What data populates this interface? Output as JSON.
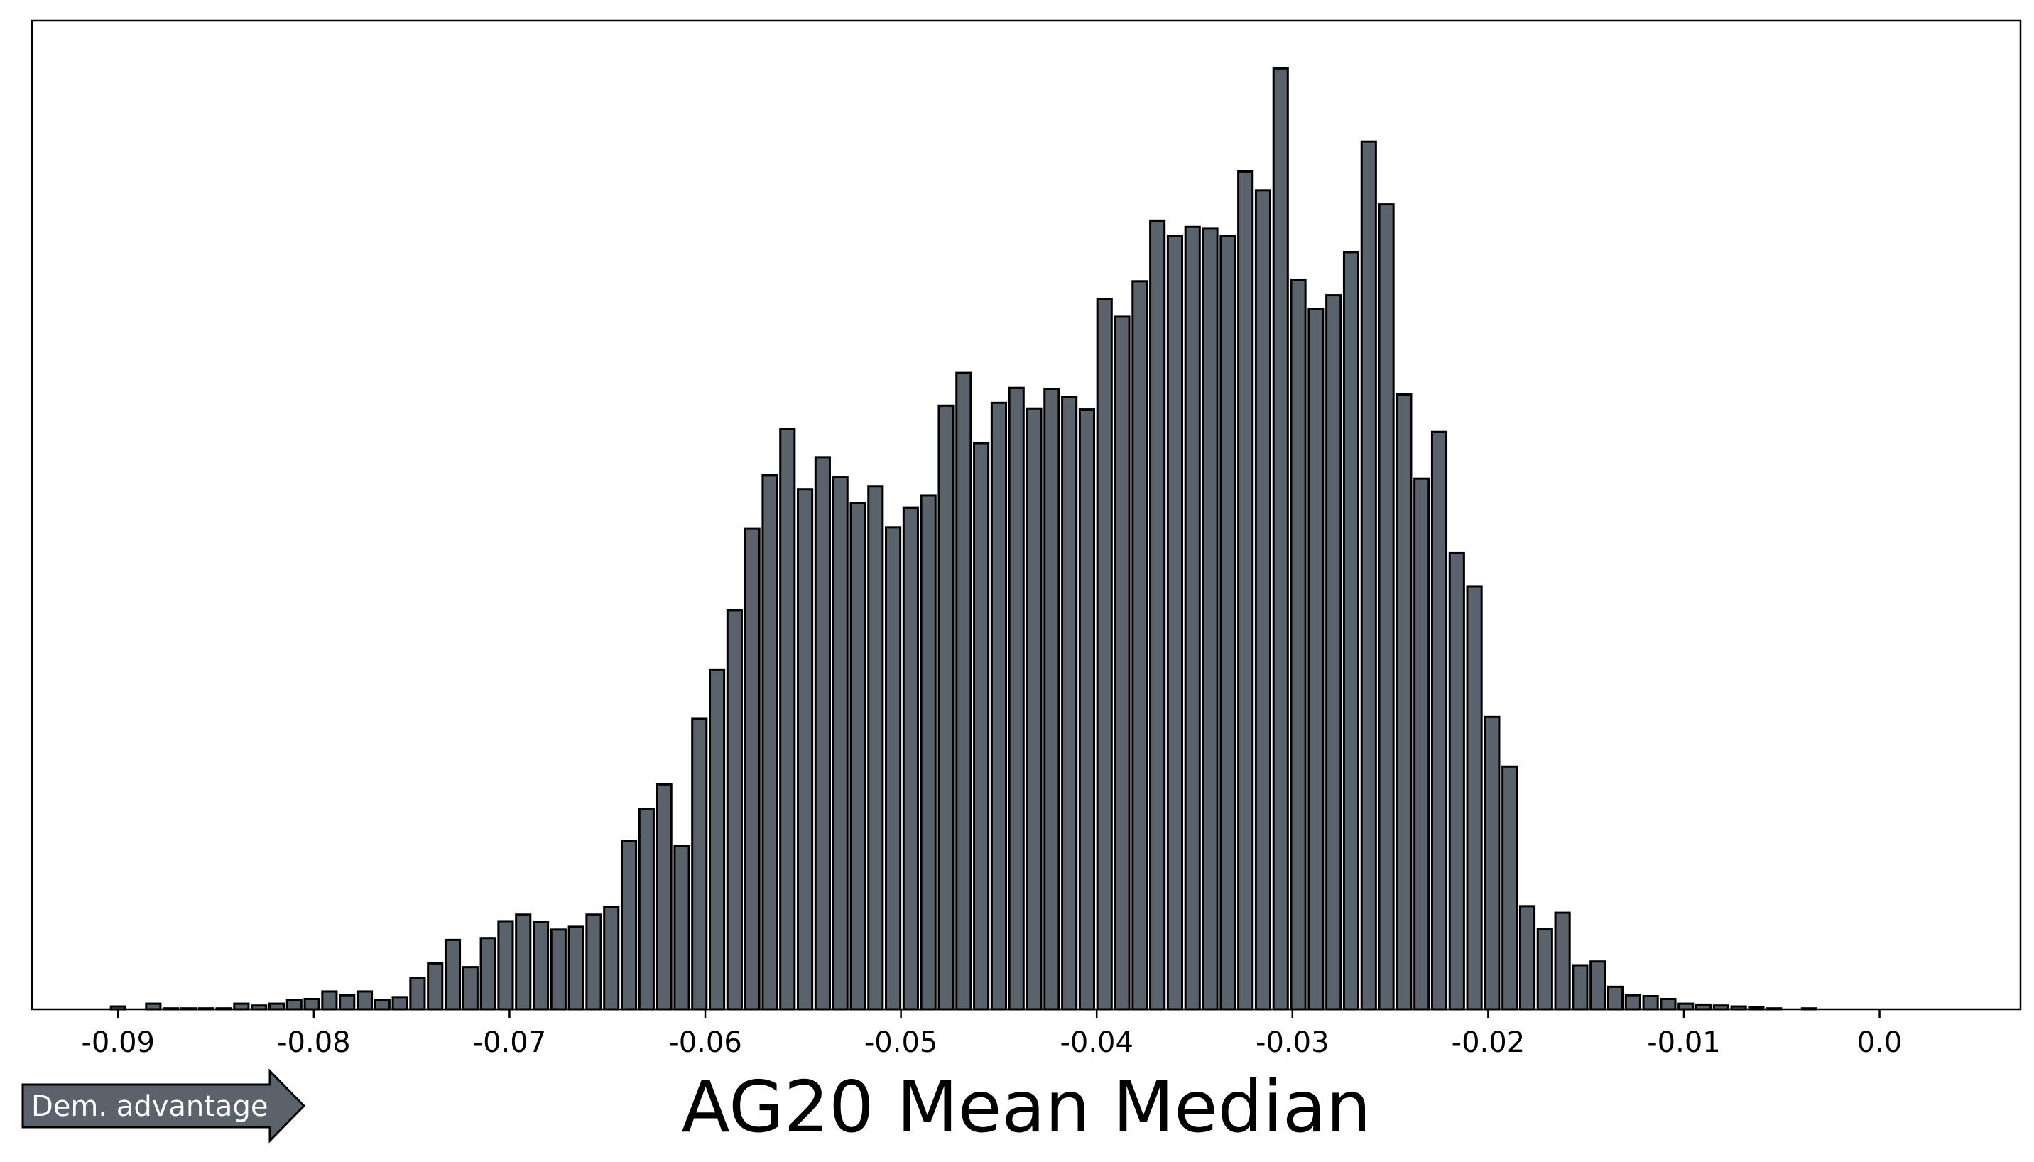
{
  "chart_data": {
    "type": "bar",
    "xlabel": "AG20 Mean Median",
    "ylabel": "",
    "xlim": [
      -0.0944,
      0.0072
    ],
    "ylim": [
      0,
      1055
    ],
    "grid": false,
    "y_ticks_shown": false,
    "bar_width": 0.00073,
    "bar_color": "#5a636b",
    "edge_color": "#000000",
    "x_ticks": [
      -0.09,
      -0.08,
      -0.07,
      -0.06,
      -0.05,
      -0.04,
      -0.03,
      -0.02,
      -0.01,
      0.0
    ],
    "x_tick_labels": [
      "-0.09",
      "-0.08",
      "-0.07",
      "-0.06",
      "-0.05",
      "-0.04",
      "-0.03",
      "-0.02",
      "-0.01",
      "0.0"
    ],
    "x": [
      -0.09,
      -0.0891,
      -0.0882,
      -0.0873,
      -0.0864,
      -0.0855,
      -0.0846,
      -0.0837,
      -0.0828,
      -0.0819,
      -0.081,
      -0.0801,
      -0.0792,
      -0.0783,
      -0.0774,
      -0.0765,
      -0.0756,
      -0.0747,
      -0.0738,
      -0.0729,
      -0.072,
      -0.0711,
      -0.0702,
      -0.0693,
      -0.0684,
      -0.0675,
      -0.0666,
      -0.0657,
      -0.0648,
      -0.0639,
      -0.063,
      -0.0621,
      -0.0612,
      -0.0603,
      -0.0594,
      -0.0585,
      -0.0576,
      -0.0567,
      -0.0558,
      -0.0549,
      -0.054,
      -0.0531,
      -0.0522,
      -0.0513,
      -0.0504,
      -0.0495,
      -0.0486,
      -0.0477,
      -0.0468,
      -0.0459,
      -0.045,
      -0.0441,
      -0.0432,
      -0.0423,
      -0.0414,
      -0.0405,
      -0.0396,
      -0.0387,
      -0.0378,
      -0.0369,
      -0.036,
      -0.0351,
      -0.0342,
      -0.0333,
      -0.0324,
      -0.0315,
      -0.0306,
      -0.0297,
      -0.0288,
      -0.0279,
      -0.027,
      -0.0261,
      -0.0252,
      -0.0243,
      -0.0234,
      -0.0225,
      -0.0216,
      -0.0207,
      -0.0198,
      -0.0189,
      -0.018,
      -0.0171,
      -0.0162,
      -0.0153,
      -0.0144,
      -0.0135,
      -0.0126,
      -0.0117,
      -0.0108,
      -0.0099,
      -0.009,
      -0.0081,
      -0.0072,
      -0.0063,
      -0.0054,
      -0.0045,
      -0.0036,
      -0.0027,
      -0.0018,
      -0.0009,
      0.0,
      0.0009,
      0.0018,
      0.0027
    ],
    "values": [
      3,
      0,
      6,
      1,
      1,
      1,
      1,
      6,
      4,
      6,
      10,
      11,
      19,
      15,
      19,
      10,
      13,
      33,
      49,
      74,
      45,
      76,
      94,
      101,
      93,
      85,
      88,
      101,
      109,
      180,
      214,
      240,
      174,
      310,
      362,
      426,
      513,
      570,
      619,
      555,
      589,
      568,
      540,
      558,
      514,
      535,
      548,
      644,
      679,
      604,
      647,
      663,
      641,
      662,
      653,
      640,
      758,
      739,
      777,
      841,
      825,
      835,
      833,
      825,
      894,
      874,
      1004,
      778,
      747,
      762,
      808,
      926,
      859,
      656,
      566,
      616,
      487,
      451,
      312,
      259,
      110,
      86,
      103,
      47,
      51,
      24,
      15,
      14,
      11,
      6,
      5,
      4,
      3,
      2,
      1,
      0,
      1,
      0,
      0,
      0,
      0,
      0,
      0,
      0
    ]
  },
  "arrow": {
    "label": "Dem. advantage",
    "color": "#5a636b"
  }
}
